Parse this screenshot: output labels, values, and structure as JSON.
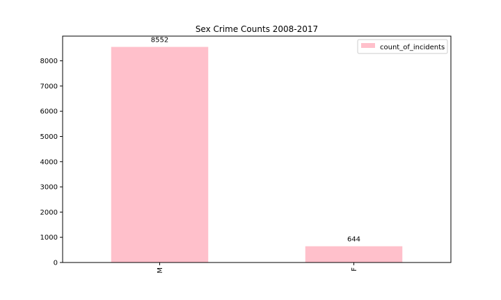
{
  "chart_data": {
    "type": "bar",
    "title": "Sex Crime Counts 2008-2017",
    "xlabel": "",
    "ylabel": "",
    "categories": [
      "M",
      "F"
    ],
    "series": [
      {
        "name": "count_of_incidents",
        "values": [
          8552,
          644
        ]
      }
    ],
    "data_labels": [
      "8552",
      "644"
    ],
    "ylim": [
      0,
      8980
    ],
    "yticks": [
      0,
      1000,
      2000,
      3000,
      4000,
      5000,
      6000,
      7000,
      8000
    ],
    "ytick_labels": [
      "0",
      "1000",
      "2000",
      "3000",
      "4000",
      "5000",
      "6000",
      "7000",
      "8000"
    ],
    "grid": false,
    "legend_position": "top-right",
    "bar_color": "#ffc0cb"
  }
}
